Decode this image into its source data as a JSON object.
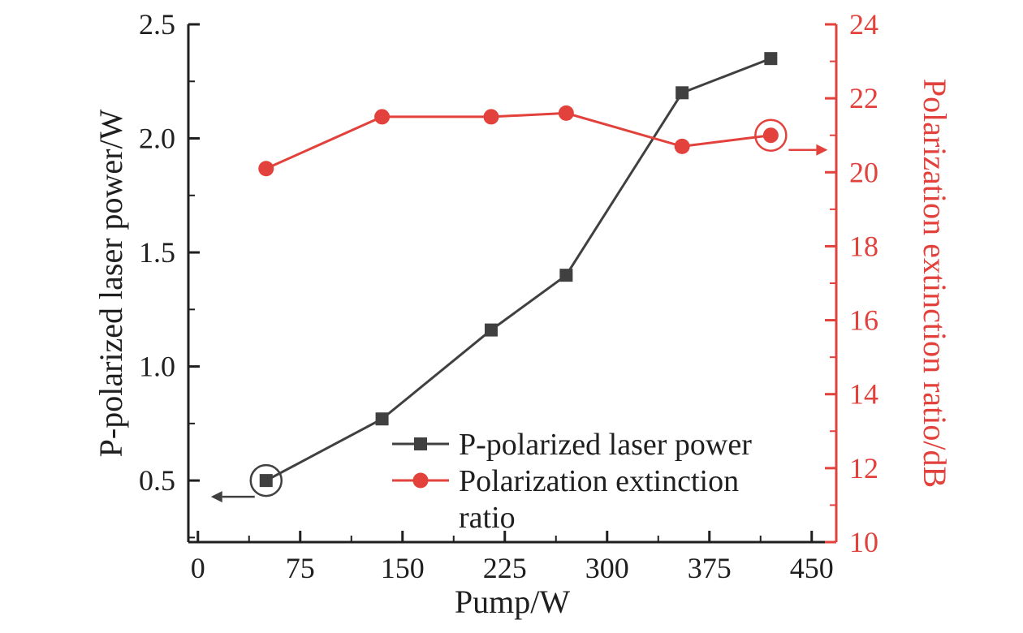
{
  "figure": {
    "background": "#ffffff"
  },
  "chart_data": {
    "type": "line",
    "title": "",
    "xlabel": "Pump/W",
    "ylabel_left": "P-polarized laser power/W",
    "ylabel_right": "Polarization extinction ratio/dB",
    "x": [
      50,
      135,
      215,
      270,
      355,
      420
    ],
    "series": [
      {
        "name": "P-polarized laser power",
        "axis": "left",
        "marker": "square",
        "color": "#404040",
        "values": [
          0.5,
          0.77,
          1.16,
          1.4,
          2.2,
          2.35
        ]
      },
      {
        "name": "Polarization extinction ratio",
        "axis": "right",
        "marker": "circle",
        "color": "#e2413c",
        "values": [
          20.1,
          21.5,
          21.5,
          21.6,
          20.7,
          21.0
        ]
      }
    ],
    "xlim": [
      -7,
      468
    ],
    "x_ticks": [
      0,
      75,
      150,
      225,
      300,
      375,
      450
    ],
    "ylim_left": [
      0.23,
      2.5
    ],
    "y_ticks_left": [
      0.5,
      1.0,
      1.5,
      2.0,
      2.5
    ],
    "ylim_right": [
      10,
      24
    ],
    "y_ticks_right": [
      10,
      12,
      14,
      16,
      18,
      20,
      22,
      24
    ],
    "axis_colors": {
      "left": "#1f1f1f",
      "bottom": "#1f1f1f",
      "right": "#e2413c"
    },
    "grid": false,
    "legend": {
      "position": "inside-bottom-center",
      "items": [
        {
          "series": 0,
          "lines": [
            "P-polarized laser power"
          ]
        },
        {
          "series": 1,
          "lines": [
            "Polarization extinction",
            "ratio"
          ]
        }
      ]
    },
    "annotations": [
      {
        "type": "axis-pointer",
        "series": 0,
        "point": 0,
        "direction": "left"
      },
      {
        "type": "axis-pointer",
        "series": 1,
        "point": 5,
        "direction": "right"
      }
    ]
  }
}
